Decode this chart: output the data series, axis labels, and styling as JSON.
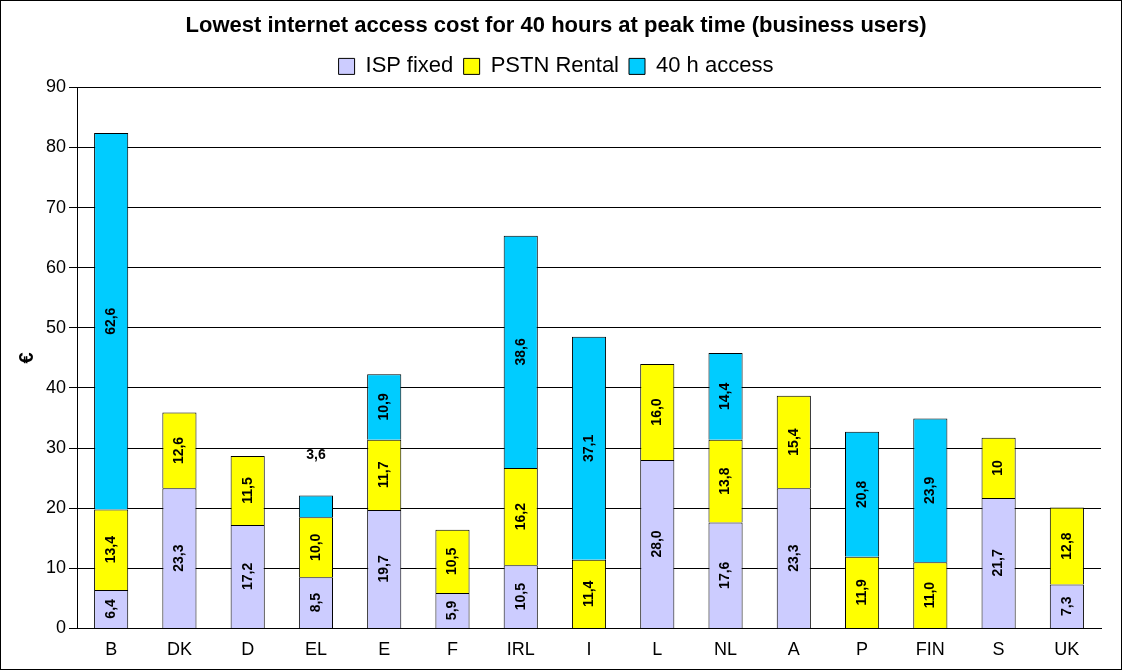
{
  "chart_data": {
    "type": "bar",
    "title": "Lowest internet access cost for 40 hours at peak time (business users)",
    "ylabel": "€",
    "categories": [
      "B",
      "DK",
      "D",
      "EL",
      "E",
      "F",
      "IRL",
      "I",
      "L",
      "NL",
      "A",
      "P",
      "FIN",
      "S",
      "UK"
    ],
    "stacked": true,
    "ylim": [
      0,
      90
    ],
    "yticks": [
      0,
      10,
      20,
      30,
      40,
      50,
      60,
      70,
      80,
      90
    ],
    "grid": "y",
    "legend": "top",
    "series": [
      {
        "name": "ISP fixed",
        "color": "#ccccff",
        "values": [
          6.4,
          23.3,
          17.2,
          8.5,
          19.7,
          5.9,
          10.5,
          null,
          28.0,
          17.6,
          23.3,
          null,
          null,
          21.7,
          7.3
        ],
        "value_labels": [
          "6,4",
          "23,3",
          "17,2",
          "8,5",
          "19,7",
          "5,9",
          "10,5",
          null,
          "28,0",
          "17,6",
          "23,3",
          null,
          null,
          "21,7",
          "7,3"
        ]
      },
      {
        "name": "PSTN Rental",
        "color": "#ffff00",
        "values": [
          13.4,
          12.6,
          11.5,
          10.0,
          11.7,
          10.5,
          16.2,
          11.4,
          16.0,
          13.8,
          15.4,
          11.9,
          11.0,
          10,
          12.8
        ],
        "value_labels": [
          "13,4",
          "12,6",
          "11,5",
          "10,0",
          "11,7",
          "10,5",
          "16,2",
          "11,4",
          "16,0",
          "13,8",
          "15,4",
          "11,9",
          "11,0",
          "10",
          "12,8"
        ]
      },
      {
        "name": "40 h access",
        "color": "#00ccff",
        "values": [
          62.6,
          null,
          null,
          3.6,
          10.9,
          null,
          38.6,
          37.1,
          null,
          14.4,
          null,
          20.8,
          23.9,
          null,
          null
        ],
        "value_labels": [
          "62,6",
          null,
          null,
          "3,6",
          "10,9",
          null,
          "38,6",
          "37,1",
          null,
          "14,4",
          null,
          "20,8",
          "23,9",
          null,
          null
        ]
      }
    ]
  }
}
